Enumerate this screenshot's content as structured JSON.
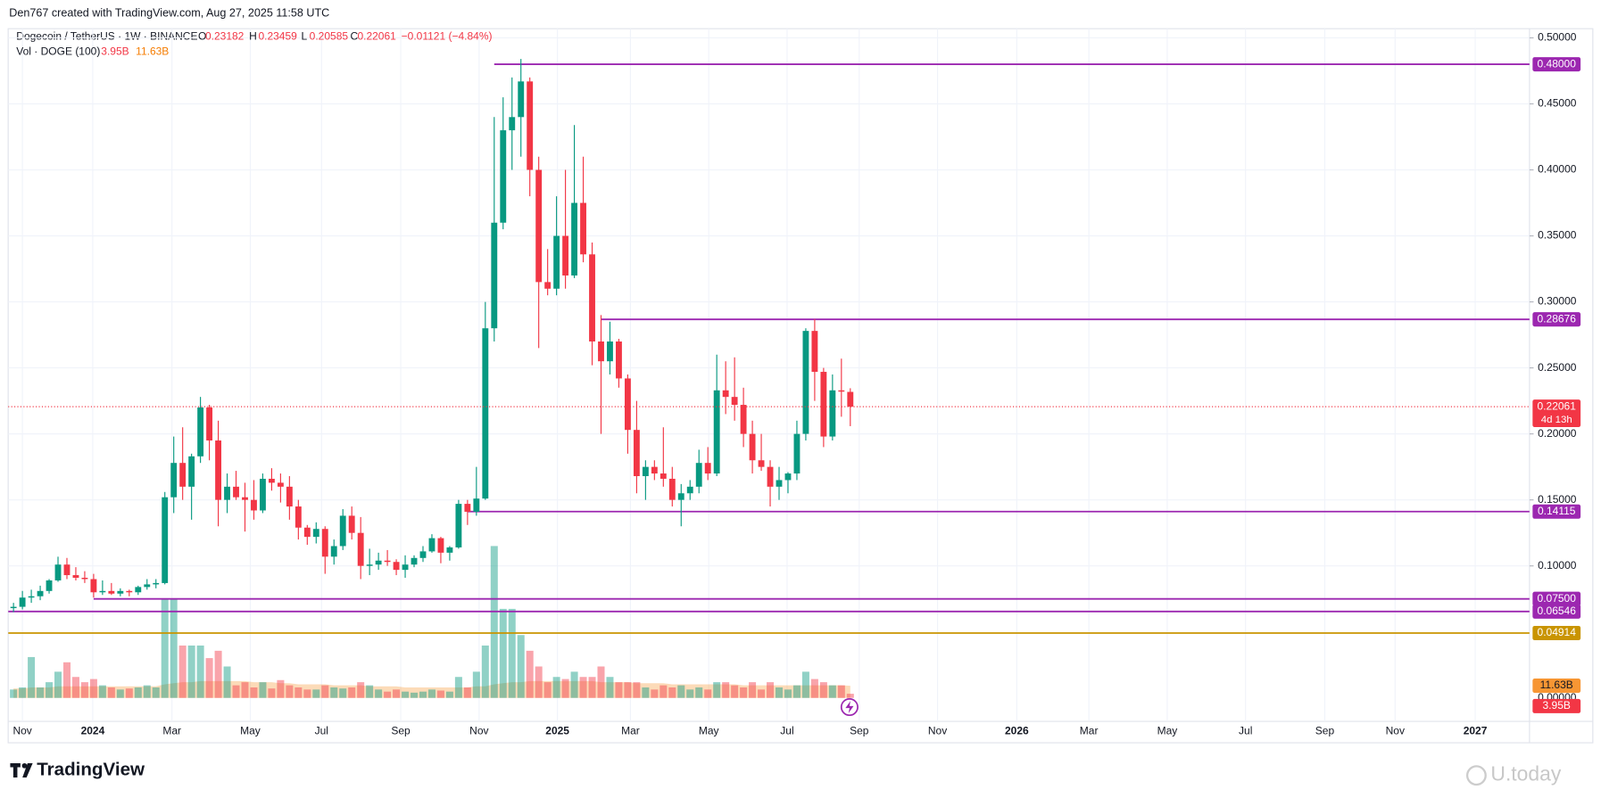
{
  "chart_data": {
    "type": "candlestick",
    "header": {
      "author_line": "Den767 created with TradingView.com, Aug 27, 2025 11:58 UTC",
      "symbol": "Dogecoin / TetherUS · 1W · BINANCE",
      "ohlc_letters": [
        "O",
        "H",
        "L",
        "C"
      ],
      "change": "−0.01121 (−4.84%)"
    },
    "up_color": "#089981",
    "down_color": "#f23645",
    "candles": [
      [
        0.068,
        0.072,
        0.065,
        0.069
      ],
      [
        0.069,
        0.081,
        0.067,
        0.076
      ],
      [
        0.076,
        0.082,
        0.072,
        0.077
      ],
      [
        0.077,
        0.085,
        0.074,
        0.081
      ],
      [
        0.081,
        0.09,
        0.079,
        0.089
      ],
      [
        0.089,
        0.107,
        0.088,
        0.101
      ],
      [
        0.101,
        0.106,
        0.09,
        0.093
      ],
      [
        0.093,
        0.099,
        0.089,
        0.091
      ],
      [
        0.091,
        0.096,
        0.087,
        0.09
      ],
      [
        0.09,
        0.094,
        0.076,
        0.08
      ],
      [
        0.08,
        0.089,
        0.078,
        0.081
      ],
      [
        0.081,
        0.087,
        0.078,
        0.079
      ],
      [
        0.079,
        0.083,
        0.077,
        0.081
      ],
      [
        0.081,
        0.082,
        0.077,
        0.08
      ],
      [
        0.08,
        0.085,
        0.078,
        0.084
      ],
      [
        0.084,
        0.09,
        0.082,
        0.086
      ],
      [
        0.086,
        0.09,
        0.083,
        0.087
      ],
      [
        0.087,
        0.156,
        0.086,
        0.152
      ],
      [
        0.152,
        0.198,
        0.14,
        0.178
      ],
      [
        0.178,
        0.205,
        0.15,
        0.16
      ],
      [
        0.16,
        0.185,
        0.135,
        0.183
      ],
      [
        0.183,
        0.228,
        0.178,
        0.22
      ],
      [
        0.22,
        0.222,
        0.18,
        0.195
      ],
      [
        0.195,
        0.21,
        0.13,
        0.15
      ],
      [
        0.15,
        0.17,
        0.14,
        0.16
      ],
      [
        0.16,
        0.172,
        0.15,
        0.152
      ],
      [
        0.152,
        0.163,
        0.126,
        0.15
      ],
      [
        0.15,
        0.165,
        0.135,
        0.142
      ],
      [
        0.142,
        0.17,
        0.14,
        0.166
      ],
      [
        0.166,
        0.174,
        0.157,
        0.163
      ],
      [
        0.163,
        0.17,
        0.148,
        0.16
      ],
      [
        0.16,
        0.168,
        0.135,
        0.145
      ],
      [
        0.145,
        0.15,
        0.12,
        0.129
      ],
      [
        0.129,
        0.131,
        0.116,
        0.122
      ],
      [
        0.122,
        0.133,
        0.117,
        0.128
      ],
      [
        0.128,
        0.13,
        0.094,
        0.107
      ],
      [
        0.107,
        0.12,
        0.101,
        0.115
      ],
      [
        0.115,
        0.143,
        0.112,
        0.138
      ],
      [
        0.138,
        0.145,
        0.12,
        0.125
      ],
      [
        0.125,
        0.137,
        0.09,
        0.1
      ],
      [
        0.1,
        0.113,
        0.093,
        0.101
      ],
      [
        0.101,
        0.11,
        0.097,
        0.104
      ],
      [
        0.104,
        0.112,
        0.1,
        0.103
      ],
      [
        0.103,
        0.105,
        0.093,
        0.097
      ],
      [
        0.097,
        0.108,
        0.091,
        0.101
      ],
      [
        0.101,
        0.108,
        0.099,
        0.106
      ],
      [
        0.106,
        0.115,
        0.103,
        0.111
      ],
      [
        0.111,
        0.124,
        0.11,
        0.121
      ],
      [
        0.121,
        0.122,
        0.102,
        0.11
      ],
      [
        0.11,
        0.115,
        0.104,
        0.114
      ],
      [
        0.114,
        0.15,
        0.113,
        0.147
      ],
      [
        0.147,
        0.15,
        0.131,
        0.141
      ],
      [
        0.141,
        0.175,
        0.138,
        0.151
      ],
      [
        0.151,
        0.3,
        0.15,
        0.28
      ],
      [
        0.28,
        0.44,
        0.27,
        0.36
      ],
      [
        0.36,
        0.455,
        0.355,
        0.43
      ],
      [
        0.43,
        0.47,
        0.4,
        0.44
      ],
      [
        0.44,
        0.484,
        0.41,
        0.467
      ],
      [
        0.467,
        0.47,
        0.38,
        0.4
      ],
      [
        0.4,
        0.41,
        0.265,
        0.315
      ],
      [
        0.315,
        0.34,
        0.305,
        0.31
      ],
      [
        0.31,
        0.38,
        0.305,
        0.35
      ],
      [
        0.35,
        0.4,
        0.31,
        0.32
      ],
      [
        0.32,
        0.434,
        0.318,
        0.375
      ],
      [
        0.375,
        0.41,
        0.33,
        0.336
      ],
      [
        0.336,
        0.345,
        0.252,
        0.27
      ],
      [
        0.27,
        0.29,
        0.2,
        0.255
      ],
      [
        0.255,
        0.285,
        0.245,
        0.27
      ],
      [
        0.27,
        0.272,
        0.235,
        0.242
      ],
      [
        0.242,
        0.245,
        0.185,
        0.203
      ],
      [
        0.203,
        0.225,
        0.155,
        0.168
      ],
      [
        0.168,
        0.18,
        0.15,
        0.175
      ],
      [
        0.175,
        0.18,
        0.165,
        0.17
      ],
      [
        0.17,
        0.205,
        0.16,
        0.166
      ],
      [
        0.166,
        0.175,
        0.145,
        0.15
      ],
      [
        0.15,
        0.162,
        0.13,
        0.155
      ],
      [
        0.155,
        0.165,
        0.15,
        0.16
      ],
      [
        0.16,
        0.188,
        0.155,
        0.178
      ],
      [
        0.178,
        0.19,
        0.165,
        0.17
      ],
      [
        0.17,
        0.26,
        0.168,
        0.233
      ],
      [
        0.233,
        0.255,
        0.215,
        0.228
      ],
      [
        0.228,
        0.258,
        0.21,
        0.222
      ],
      [
        0.222,
        0.235,
        0.19,
        0.2
      ],
      [
        0.2,
        0.21,
        0.17,
        0.18
      ],
      [
        0.18,
        0.2,
        0.172,
        0.175
      ],
      [
        0.175,
        0.18,
        0.145,
        0.16
      ],
      [
        0.16,
        0.175,
        0.15,
        0.165
      ],
      [
        0.165,
        0.171,
        0.155,
        0.17
      ],
      [
        0.17,
        0.21,
        0.165,
        0.2
      ],
      [
        0.2,
        0.28,
        0.195,
        0.278
      ],
      [
        0.278,
        0.287,
        0.225,
        0.247
      ],
      [
        0.247,
        0.25,
        0.19,
        0.198
      ],
      [
        0.198,
        0.245,
        0.195,
        0.233
      ],
      [
        0.233,
        0.257,
        0.213,
        0.232
      ],
      [
        0.23182,
        0.23459,
        0.20585,
        0.22061
      ]
    ],
    "countdown": "4d 13h",
    "volume": {
      "name": "Vol · DOGE (100)",
      "last_label": "3.95B",
      "ma_last_label": "11.63B",
      "ma_color": "#f57c00",
      "values": [
        8,
        10,
        39,
        10,
        15,
        25,
        34,
        20,
        15,
        18,
        12,
        10,
        8,
        9,
        10,
        12,
        10,
        95,
        95,
        50,
        50,
        50,
        38,
        45,
        30,
        12,
        15,
        10,
        15,
        9,
        17,
        12,
        10,
        8,
        8,
        12,
        10,
        9,
        10,
        15,
        12,
        8,
        6,
        8,
        6,
        5,
        6,
        8,
        7,
        6,
        20,
        10,
        25,
        50,
        145,
        85,
        85,
        60,
        45,
        30,
        15,
        20,
        18,
        25,
        20,
        20,
        30,
        20,
        15,
        15,
        15,
        10,
        8,
        12,
        10,
        12,
        8,
        10,
        8,
        15,
        15,
        12,
        10,
        15,
        8,
        15,
        10,
        8,
        12,
        25,
        18,
        15,
        12,
        12,
        3.95
      ],
      "ma_values": [
        9,
        9,
        10,
        10,
        10,
        11,
        11,
        11,
        11,
        11,
        11,
        11,
        11,
        11,
        11,
        11,
        11,
        13,
        14,
        15,
        15,
        16,
        16,
        16,
        16,
        16,
        16,
        15,
        15,
        15,
        14,
        14,
        13,
        13,
        13,
        13,
        12,
        12,
        12,
        12,
        11,
        11,
        11,
        11,
        10,
        10,
        10,
        10,
        10,
        10,
        10,
        10,
        11,
        11,
        13,
        14,
        15,
        15,
        16,
        16,
        16,
        16,
        16,
        16,
        16,
        16,
        15,
        15,
        15,
        15,
        14,
        14,
        14,
        14,
        13,
        13,
        13,
        13,
        13,
        13,
        13,
        13,
        12,
        12,
        12,
        12,
        12,
        12,
        12,
        12,
        12,
        12,
        12,
        12,
        11.63
      ],
      "ylim": [
        0,
        150
      ],
      "yticks": [
        {
          "value": 0,
          "label": "0.00000"
        }
      ]
    },
    "hlines": [
      {
        "value": 0.48,
        "label": "0.48000",
        "color": "#9c27b0",
        "start": 54
      },
      {
        "value": 0.28676,
        "label": "0.28676",
        "color": "#9c27b0",
        "start": 66
      },
      {
        "value": 0.14115,
        "label": "0.14115",
        "color": "#9c27b0",
        "start": 51
      },
      {
        "value": 0.075,
        "label": "0.07500",
        "color": "#9c27b0",
        "start": 9
      },
      {
        "value": 0.06546,
        "label": "0.06546",
        "color": "#9c27b0",
        "start": -0.6
      },
      {
        "value": 0.04914,
        "label": "0.04914",
        "color": "#c99400",
        "start": -0.6
      }
    ],
    "ylim": [
      0,
      0.5
    ],
    "yticks": [
      {
        "value": 0.5,
        "label": "0.50000"
      },
      {
        "value": 0.45,
        "label": "0.45000"
      },
      {
        "value": 0.4,
        "label": "0.40000"
      },
      {
        "value": 0.35,
        "label": "0.35000"
      },
      {
        "value": 0.3,
        "label": "0.30000"
      },
      {
        "value": 0.25,
        "label": "0.25000"
      },
      {
        "value": 0.2,
        "label": "0.20000"
      },
      {
        "value": 0.15,
        "label": "0.15000"
      },
      {
        "value": 0.1,
        "label": "0.10000"
      }
    ],
    "xlim": [
      -0.6,
      170.3
    ],
    "xticks": [
      {
        "value": 1,
        "label": "Nov"
      },
      {
        "value": 8.9,
        "label": "2024"
      },
      {
        "value": 17.8,
        "label": "Mar"
      },
      {
        "value": 26.6,
        "label": "May"
      },
      {
        "value": 34.6,
        "label": "Jul"
      },
      {
        "value": 43.5,
        "label": "Sep"
      },
      {
        "value": 52.3,
        "label": "Nov"
      },
      {
        "value": 61.1,
        "label": "2025"
      },
      {
        "value": 69.3,
        "label": "Mar"
      },
      {
        "value": 78.1,
        "label": "May"
      },
      {
        "value": 86.9,
        "label": "Jul"
      },
      {
        "value": 95,
        "label": "Sep"
      },
      {
        "value": 103.8,
        "label": "Nov"
      },
      {
        "value": 112.7,
        "label": "2026"
      },
      {
        "value": 120.8,
        "label": "Mar"
      },
      {
        "value": 129.6,
        "label": "May"
      },
      {
        "value": 138.4,
        "label": "Jul"
      },
      {
        "value": 147.3,
        "label": "Sep"
      },
      {
        "value": 155.2,
        "label": "Nov"
      },
      {
        "value": 164.2,
        "label": "2027"
      }
    ],
    "grid": true,
    "footer": {
      "brand": "TradingView",
      "watermark": "U.today"
    }
  }
}
